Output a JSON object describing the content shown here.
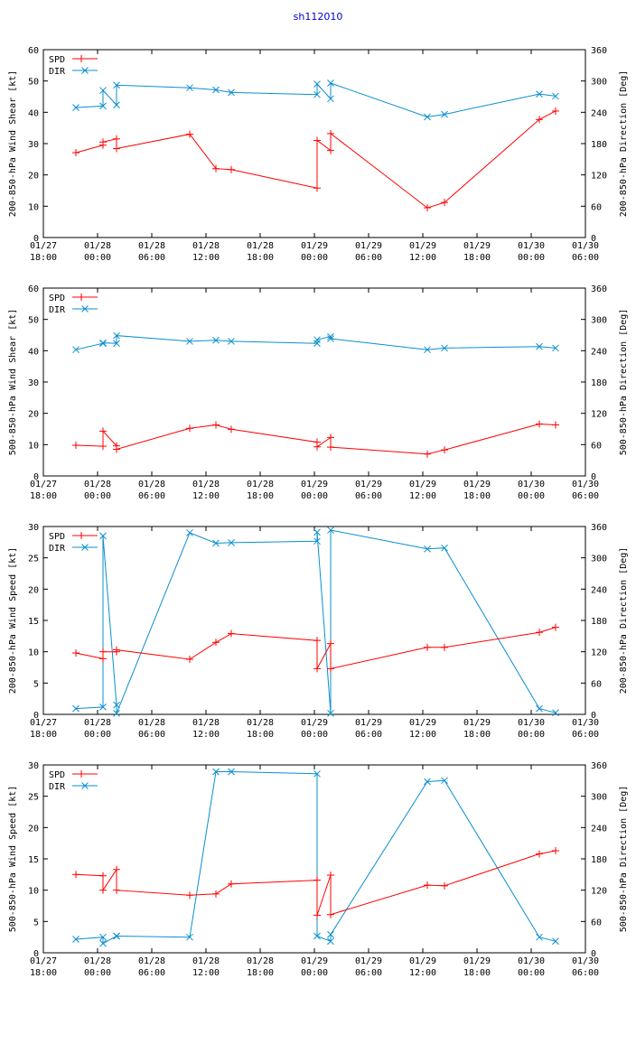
{
  "title": "sh112010",
  "colors": {
    "spd": "#ff0000",
    "dir": "#0a8fd0"
  },
  "chart_data": [
    {
      "type": "line",
      "ylabel": "200-850-hPa Wind Shear [kt]",
      "y2label": "200-850-hPa Direction [Deg]",
      "ylim": [
        0,
        60
      ],
      "y2lim": [
        0,
        360
      ],
      "yticks": [
        "0",
        "10",
        "20",
        "30",
        "40",
        "50",
        "60"
      ],
      "y2ticks": [
        "0",
        "60",
        "120",
        "180",
        "240",
        "300",
        "360"
      ],
      "xlim": [
        0,
        60
      ],
      "xticks": [
        {
          "date": "01/27",
          "time": "18:00"
        },
        {
          "date": "01/28",
          "time": "00:00"
        },
        {
          "date": "01/28",
          "time": "06:00"
        },
        {
          "date": "01/28",
          "time": "12:00"
        },
        {
          "date": "01/28",
          "time": "18:00"
        },
        {
          "date": "01/29",
          "time": "00:00"
        },
        {
          "date": "01/29",
          "time": "06:00"
        },
        {
          "date": "01/29",
          "time": "12:00"
        },
        {
          "date": "01/29",
          "time": "18:00"
        },
        {
          "date": "01/30",
          "time": "00:00"
        },
        {
          "date": "01/30",
          "time": "06:00"
        }
      ],
      "series": [
        {
          "name": "SPD",
          "axis": "left",
          "x": [
            3.6,
            6.6,
            6.6,
            8.1,
            8.1,
            16.2,
            19.1,
            20.8,
            30.3,
            30.3,
            31.8,
            31.8,
            42.5,
            44.4,
            54.9,
            56.7
          ],
          "y": [
            27.1,
            29.5,
            30.5,
            31.5,
            28.4,
            33,
            22,
            21.7,
            15.8,
            31,
            27.8,
            33.2,
            9.5,
            11.2,
            37.7,
            40.4
          ]
        },
        {
          "name": "DIR",
          "axis": "right",
          "x": [
            3.6,
            6.6,
            6.6,
            8.1,
            8.1,
            16.2,
            19.1,
            20.8,
            30.3,
            30.3,
            31.8,
            31.8,
            42.5,
            44.4,
            54.9,
            56.7
          ],
          "y": [
            249,
            252,
            282,
            254,
            292,
            287,
            283,
            278,
            274,
            294,
            266,
            296,
            231,
            236,
            275,
            271
          ]
        }
      ]
    },
    {
      "type": "line",
      "ylabel": "500-850-hPa Wind Shear [kt]",
      "y2label": "500-850-hPa Direction [Deg]",
      "ylim": [
        0,
        60
      ],
      "y2lim": [
        0,
        360
      ],
      "yticks": [
        "0",
        "10",
        "20",
        "30",
        "40",
        "50",
        "60"
      ],
      "y2ticks": [
        "0",
        "60",
        "120",
        "180",
        "240",
        "300",
        "360"
      ],
      "xlim": [
        0,
        60
      ],
      "xticks": [
        {
          "date": "01/27",
          "time": "18:00"
        },
        {
          "date": "01/28",
          "time": "00:00"
        },
        {
          "date": "01/28",
          "time": "06:00"
        },
        {
          "date": "01/28",
          "time": "12:00"
        },
        {
          "date": "01/28",
          "time": "18:00"
        },
        {
          "date": "01/29",
          "time": "00:00"
        },
        {
          "date": "01/29",
          "time": "06:00"
        },
        {
          "date": "01/29",
          "time": "12:00"
        },
        {
          "date": "01/29",
          "time": "18:00"
        },
        {
          "date": "01/30",
          "time": "00:00"
        },
        {
          "date": "01/30",
          "time": "06:00"
        }
      ],
      "series": [
        {
          "name": "SPD",
          "axis": "left",
          "x": [
            3.6,
            6.6,
            6.6,
            8.1,
            8.1,
            16.2,
            19.1,
            20.8,
            30.3,
            30.3,
            31.8,
            31.8,
            42.5,
            44.4,
            54.9,
            56.7
          ],
          "y": [
            9.8,
            9.5,
            14.3,
            9.6,
            8.5,
            15.2,
            16.3,
            14.9,
            10.8,
            9.3,
            12.3,
            9.2,
            7,
            8.3,
            16.6,
            16.3
          ]
        },
        {
          "name": "DIR",
          "axis": "right",
          "x": [
            3.6,
            6.6,
            6.6,
            8.1,
            8.1,
            16.2,
            19.1,
            20.8,
            30.3,
            30.3,
            31.8,
            31.8,
            42.5,
            44.4,
            54.9,
            56.7
          ],
          "y": [
            242,
            254,
            255,
            254,
            269,
            258,
            260,
            258,
            254,
            261,
            267,
            263,
            242,
            245,
            248,
            245
          ]
        }
      ]
    },
    {
      "type": "line",
      "ylabel": "200-850-hPa Wind Speed [kt]",
      "y2label": "200-850-hPa Direction [Deg]",
      "ylim": [
        0,
        30
      ],
      "y2lim": [
        0,
        360
      ],
      "yticks": [
        "0",
        "5",
        "10",
        "15",
        "20",
        "25",
        "30"
      ],
      "y2ticks": [
        "0",
        "60",
        "120",
        "180",
        "240",
        "300",
        "360"
      ],
      "xlim": [
        0,
        60
      ],
      "xticks": [
        {
          "date": "01/27",
          "time": "18:00"
        },
        {
          "date": "01/28",
          "time": "00:00"
        },
        {
          "date": "01/28",
          "time": "06:00"
        },
        {
          "date": "01/28",
          "time": "12:00"
        },
        {
          "date": "01/28",
          "time": "18:00"
        },
        {
          "date": "01/29",
          "time": "00:00"
        },
        {
          "date": "01/29",
          "time": "06:00"
        },
        {
          "date": "01/29",
          "time": "12:00"
        },
        {
          "date": "01/29",
          "time": "18:00"
        },
        {
          "date": "01/30",
          "time": "00:00"
        },
        {
          "date": "01/30",
          "time": "06:00"
        }
      ],
      "series": [
        {
          "name": "SPD",
          "axis": "left",
          "x": [
            3.6,
            6.6,
            6.6,
            8.1,
            8.1,
            16.2,
            19.1,
            20.8,
            30.3,
            30.3,
            31.8,
            31.8,
            42.5,
            44.4,
            54.9,
            56.7
          ],
          "y": [
            9.8,
            8.9,
            10,
            10,
            10.3,
            8.8,
            11.5,
            12.9,
            11.8,
            7.3,
            11.3,
            7.3,
            10.7,
            10.7,
            13.1,
            13.9
          ]
        },
        {
          "name": "DIR",
          "axis": "right",
          "x": [
            3.6,
            6.6,
            6.6,
            8.1,
            8.1,
            16.2,
            19.1,
            20.8,
            30.3,
            30.3,
            31.8,
            31.8,
            42.5,
            44.4,
            54.9,
            56.7
          ],
          "y": [
            11,
            14,
            342,
            18,
            2,
            348,
            328,
            329,
            332,
            349,
            2,
            353,
            317,
            319,
            11,
            3
          ]
        }
      ]
    },
    {
      "type": "line",
      "ylabel": "500-850-hPa Wind Speed [kt]",
      "y2label": "500-850-hPa Direction [Deg]",
      "ylim": [
        0,
        30
      ],
      "y2lim": [
        0,
        360
      ],
      "yticks": [
        "0",
        "5",
        "10",
        "15",
        "20",
        "25",
        "30"
      ],
      "y2ticks": [
        "0",
        "60",
        "120",
        "180",
        "240",
        "300",
        "360"
      ],
      "xlim": [
        0,
        60
      ],
      "xticks": [
        {
          "date": "01/27",
          "time": "18:00"
        },
        {
          "date": "01/28",
          "time": "00:00"
        },
        {
          "date": "01/28",
          "time": "06:00"
        },
        {
          "date": "01/28",
          "time": "12:00"
        },
        {
          "date": "01/28",
          "time": "18:00"
        },
        {
          "date": "01/29",
          "time": "00:00"
        },
        {
          "date": "01/29",
          "time": "06:00"
        },
        {
          "date": "01/29",
          "time": "12:00"
        },
        {
          "date": "01/29",
          "time": "18:00"
        },
        {
          "date": "01/30",
          "time": "00:00"
        },
        {
          "date": "01/30",
          "time": "06:00"
        }
      ],
      "series": [
        {
          "name": "SPD",
          "axis": "left",
          "x": [
            3.6,
            6.6,
            6.6,
            8.1,
            8.1,
            16.2,
            19.1,
            20.8,
            30.3,
            30.3,
            31.8,
            31.8,
            42.5,
            44.4,
            54.9,
            56.7
          ],
          "y": [
            12.5,
            12.3,
            10,
            13.3,
            10,
            9.2,
            9.4,
            11,
            11.6,
            6,
            12.4,
            6.1,
            10.8,
            10.7,
            15.8,
            16.3
          ]
        },
        {
          "name": "DIR",
          "axis": "right",
          "x": [
            3.6,
            6.6,
            6.6,
            8.1,
            8.1,
            16.2,
            19.1,
            20.8,
            30.3,
            30.3,
            31.8,
            31.8,
            42.5,
            44.4,
            54.9,
            56.7
          ],
          "y": [
            26,
            30,
            18,
            32,
            32,
            30,
            347,
            347,
            343,
            32,
            22,
            35,
            328,
            330,
            30,
            22
          ]
        }
      ]
    }
  ]
}
